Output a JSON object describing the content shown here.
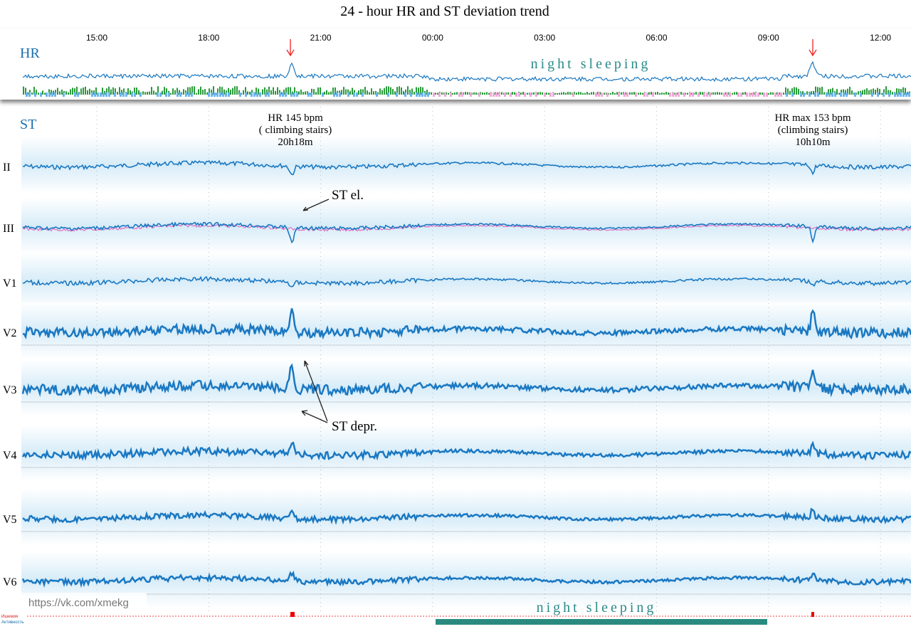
{
  "title": "24 - hour HR and ST deviation trend",
  "time_axis": [
    "15:00",
    "18:00",
    "21:00",
    "00:00",
    "03:00",
    "06:00",
    "09:00",
    "12:00"
  ],
  "hr_panel": {
    "label": "HR",
    "annotation": "night sleeping"
  },
  "st_panel": {
    "label": "ST",
    "leads": [
      "II",
      "III",
      "V1",
      "V2",
      "V3",
      "V4",
      "V5",
      "V6"
    ]
  },
  "annotations": {
    "event_1": [
      "HR 145 bpm",
      "( climbing stairs)",
      "20h18m"
    ],
    "event_2": [
      "HR max 153 bpm",
      "(climbing stairs)",
      "10h10m"
    ],
    "st_elevation": "ST el.",
    "st_depression": "ST depr."
  },
  "watermark": "https://vk.com/xmekg",
  "bottom_annotation": "night sleeping",
  "bottom_labels": [
    "Ишемия",
    "Активность"
  ]
}
